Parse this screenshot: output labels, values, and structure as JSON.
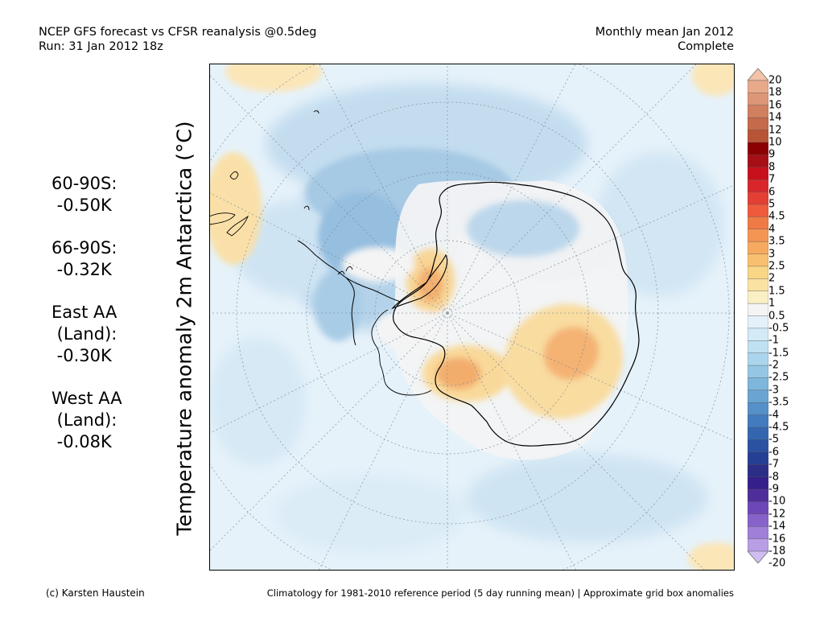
{
  "header": {
    "title_line1": "NCEP GFS forecast vs CFSR reanalysis @0.5deg",
    "title_line2": "Run: 31 Jan 2012 18z",
    "right_line1": "Monthly mean Jan 2012",
    "right_line2": "Complete"
  },
  "stats": [
    {
      "label": "60-90S:",
      "value": " -0.50K"
    },
    {
      "label": "66-90S:",
      "value": " -0.32K"
    },
    {
      "label": "East AA",
      "label2": " (Land):",
      "value": " -0.30K"
    },
    {
      "label": "West AA",
      "label2": " (Land):",
      "value": " -0.08K"
    }
  ],
  "ylabel": "Temperature anomaly 2m Antarctica (°C)",
  "colorbar": {
    "labels": [
      "20",
      "18",
      "16",
      "14",
      "12",
      "10",
      "9",
      "8",
      "7",
      "6",
      "5",
      "4.5",
      "4",
      "3.5",
      "3",
      "2.5",
      "2",
      "1.5",
      "1",
      "0.5",
      "-0.5",
      "-1",
      "-1.5",
      "-2",
      "-2.5",
      "-3",
      "-3.5",
      "-4",
      "-4.5",
      "-5",
      "-6",
      "-7",
      "-8",
      "-9",
      "-10",
      "-12",
      "-14",
      "-16",
      "-18",
      "-20"
    ],
    "colors": [
      "#f3c2a8",
      "#e8a98b",
      "#dd9677",
      "#d07f5f",
      "#c56a4a",
      "#b85436",
      "#8b0000",
      "#a50f15",
      "#c8101c",
      "#d8262a",
      "#e33f34",
      "#ee5a3c",
      "#f07a45",
      "#f49554",
      "#f6aa5f",
      "#f8bf70",
      "#f9d586",
      "#fae3a2",
      "#fbefc6",
      "#f4f4f4",
      "#e4f1fa",
      "#d3eaf7",
      "#bfe1f2",
      "#abd5ec",
      "#95c7e4",
      "#7fb6db",
      "#6aa4d2",
      "#5590c9",
      "#427bbe",
      "#3466b0",
      "#2a52a1",
      "#243f93",
      "#2c2d87",
      "#35208a",
      "#4f2d9b",
      "#6d47b7",
      "#8762c9",
      "#a07fd8",
      "#b99ee6",
      "#cfbff0"
    ]
  },
  "footer": {
    "left": "(c) Karsten Haustein",
    "right": "Climatology for 1981-2010 reference period (5 day running mean) | Approximate grid box anomalies"
  }
}
